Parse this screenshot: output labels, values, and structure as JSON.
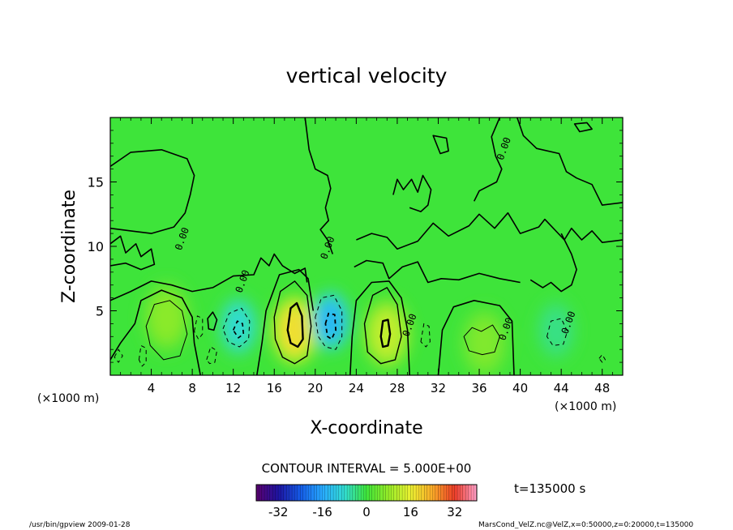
{
  "chart_data": {
    "type": "contour",
    "title": "vertical velocity",
    "xlabel": "X-coordinate",
    "ylabel": "Z-coordinate",
    "x_unit_label": "(×1000 m)",
    "z_unit_label": "(×1000 m)",
    "xlim": [
      0,
      50
    ],
    "ylim": [
      0,
      20
    ],
    "x_ticks": [
      4,
      8,
      12,
      16,
      20,
      24,
      28,
      32,
      36,
      40,
      44,
      48
    ],
    "y_ticks": [
      5,
      10,
      15
    ],
    "contour_interval_text": "CONTOUR INTERVAL = 5.000E+00",
    "time_text": "t=135000 s",
    "colorbar": {
      "range": [
        -40,
        40
      ],
      "ticks": [
        -32,
        -16,
        0,
        16,
        32
      ]
    },
    "contour_labels": [
      {
        "text": "0.00",
        "x": 7.3,
        "z": 10.5
      },
      {
        "text": "0.00",
        "x": 13.2,
        "z": 7.2
      },
      {
        "text": "0.00",
        "x": 21.5,
        "z": 9.8
      },
      {
        "text": "0.00",
        "x": 29.5,
        "z": 3.8
      },
      {
        "text": "0.00",
        "x": 38.9,
        "z": 3.5
      },
      {
        "text": "0.00",
        "x": 45.0,
        "z": 4.0
      },
      {
        "text": "0.00",
        "x": 38.7,
        "z": 17.5
      }
    ],
    "features": [
      {
        "kind": "updraft",
        "x": 18,
        "z": 3.5,
        "peak": 18
      },
      {
        "kind": "updraft",
        "x": 27,
        "z": 3.2,
        "peak": 12
      },
      {
        "kind": "updraft",
        "x": 5.5,
        "z": 4.5,
        "peak": 7
      },
      {
        "kind": "updraft",
        "x": 36.5,
        "z": 2.5,
        "peak": 6
      },
      {
        "kind": "downdraft",
        "x": 21.5,
        "z": 4.2,
        "peak": -14
      },
      {
        "kind": "downdraft",
        "x": 12.5,
        "z": 3.8,
        "peak": -8
      },
      {
        "kind": "downdraft",
        "x": 43.5,
        "z": 3.5,
        "peak": -4
      }
    ]
  },
  "footer": {
    "left": "/usr/bin/gpview   2009-01-28",
    "right": "MarsCond_VelZ.nc@VelZ,x=0:50000,z=0:20000,t=135000"
  }
}
